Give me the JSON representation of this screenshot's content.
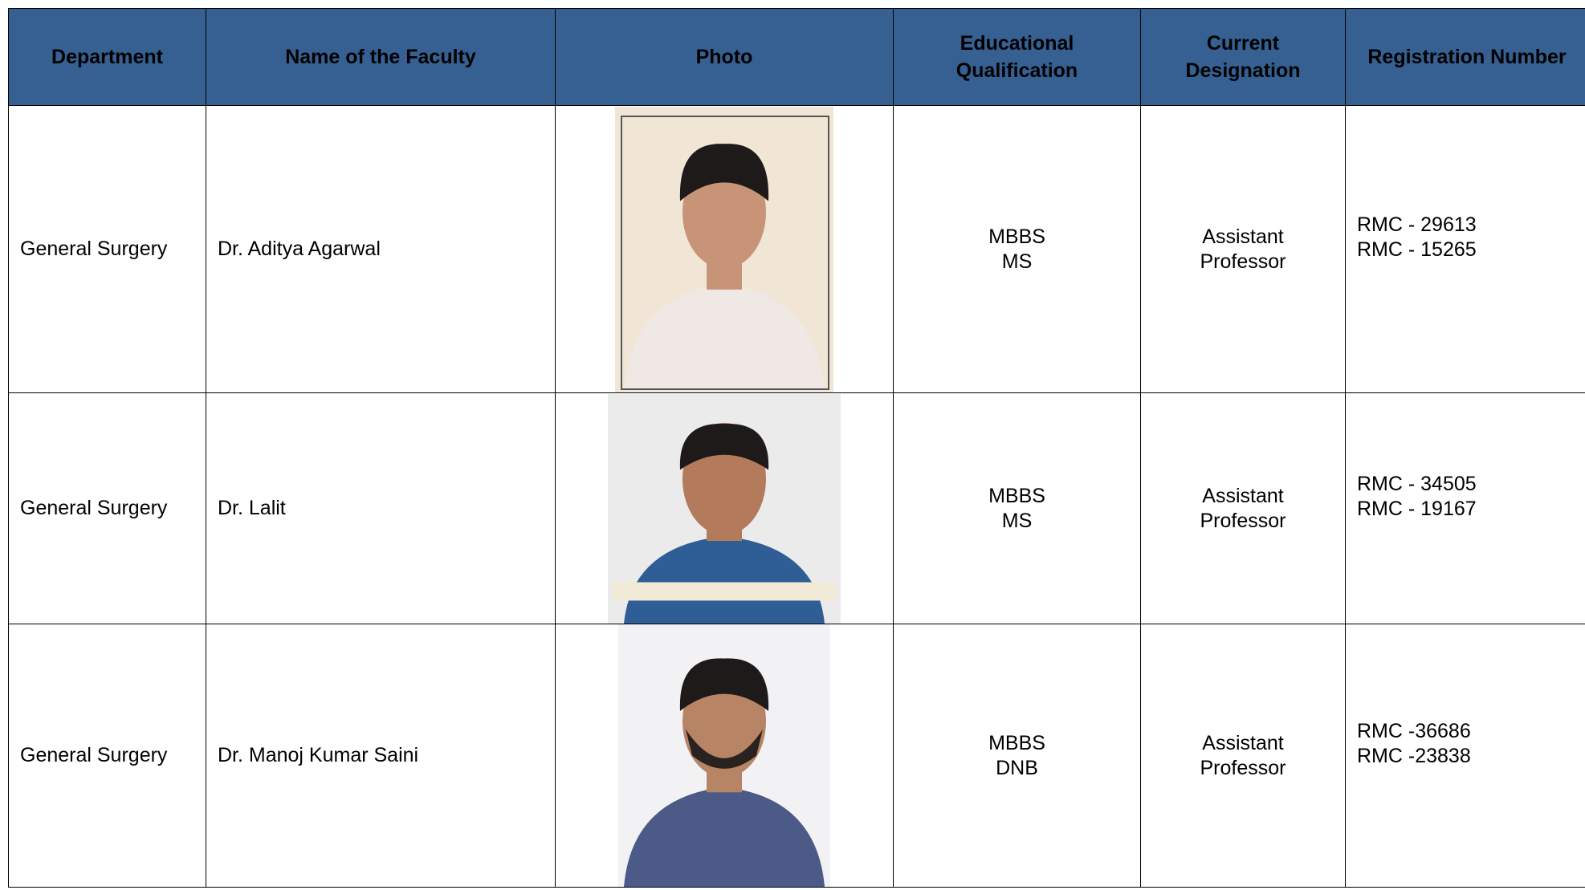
{
  "table": {
    "headers": [
      "Department",
      "Name of the Faculty",
      "Photo",
      "Educational Qualification",
      "Current Designation",
      "Registration Number"
    ],
    "rows": [
      {
        "department": "General Surgery",
        "name": "Dr. Aditya Agarwal",
        "qualification": [
          "MBBS",
          "MS"
        ],
        "designation": [
          "Assistant",
          "Professor"
        ],
        "registration": [
          "RMC - 29613",
          "RMC - 15265"
        ]
      },
      {
        "department": "General Surgery",
        "name": "Dr. Lalit",
        "qualification": [
          "MBBS",
          "MS"
        ],
        "designation": [
          "Assistant",
          "Professor"
        ],
        "registration": [
          "RMC - 34505",
          "RMC - 19167"
        ]
      },
      {
        "department": "General Surgery",
        "name": "Dr. Manoj Kumar Saini",
        "qualification": [
          "MBBS",
          "DNB"
        ],
        "designation": [
          "Assistant",
          "Professor"
        ],
        "registration": [
          "RMC -36686",
          "RMC -23838"
        ]
      }
    ]
  }
}
